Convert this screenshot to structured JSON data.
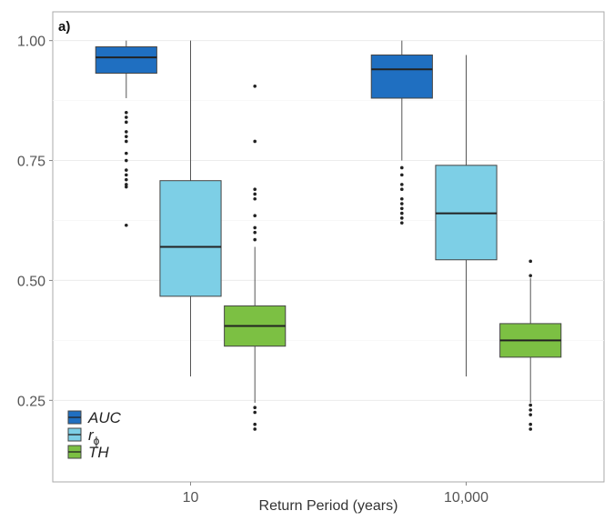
{
  "chart_data": {
    "type": "box",
    "panel_label": "a)",
    "xlabel": "Return Period (years)",
    "ylabel": "",
    "ylim": [
      0.08,
      1.06
    ],
    "y_ticks": [
      0.25,
      0.5,
      0.75,
      1.0
    ],
    "y_tick_labels": [
      "0.25",
      "0.50",
      "0.75",
      "1.00"
    ],
    "categories": [
      "10",
      "10,000"
    ],
    "grid": true,
    "legend_position": "bottom-left",
    "series": [
      {
        "name": "AUC",
        "legend_main": "AUC",
        "legend_sub": "",
        "color": "#1f6fc1",
        "boxes": [
          {
            "category": "10",
            "lower_whisker": 0.88,
            "q1": 0.932,
            "median": 0.965,
            "q3": 0.987,
            "upper_whisker": 1.0,
            "outliers": [
              0.85,
              0.84,
              0.83,
              0.81,
              0.8,
              0.79,
              0.765,
              0.75,
              0.73,
              0.72,
              0.71,
              0.7,
              0.695,
              0.615
            ]
          },
          {
            "category": "10,000",
            "lower_whisker": 0.75,
            "q1": 0.88,
            "median": 0.94,
            "q3": 0.97,
            "upper_whisker": 1.0,
            "outliers": [
              0.735,
              0.72,
              0.7,
              0.69,
              0.67,
              0.66,
              0.65,
              0.64,
              0.63,
              0.62
            ]
          }
        ]
      },
      {
        "name": "r_phi",
        "legend_main": "r",
        "legend_sub": "ϕ",
        "color": "#7dcfe6",
        "boxes": [
          {
            "category": "10",
            "lower_whisker": 0.3,
            "q1": 0.467,
            "median": 0.57,
            "q3": 0.708,
            "upper_whisker": 1.0,
            "outliers": []
          },
          {
            "category": "10,000",
            "lower_whisker": 0.3,
            "q1": 0.543,
            "median": 0.64,
            "q3": 0.74,
            "upper_whisker": 0.97,
            "outliers": []
          }
        ]
      },
      {
        "name": "TH",
        "legend_main": "TH",
        "legend_sub": "",
        "color": "#7cc043",
        "boxes": [
          {
            "category": "10",
            "lower_whisker": 0.245,
            "q1": 0.363,
            "median": 0.405,
            "q3": 0.447,
            "upper_whisker": 0.57,
            "outliers": [
              0.905,
              0.79,
              0.69,
              0.68,
              0.67,
              0.635,
              0.61,
              0.6,
              0.585,
              0.235,
              0.225,
              0.2,
              0.19
            ]
          },
          {
            "category": "10,000",
            "lower_whisker": 0.245,
            "q1": 0.34,
            "median": 0.375,
            "q3": 0.41,
            "upper_whisker": 0.505,
            "outliers": [
              0.54,
              0.51,
              0.24,
              0.23,
              0.22,
              0.2,
              0.19
            ]
          }
        ]
      }
    ]
  }
}
